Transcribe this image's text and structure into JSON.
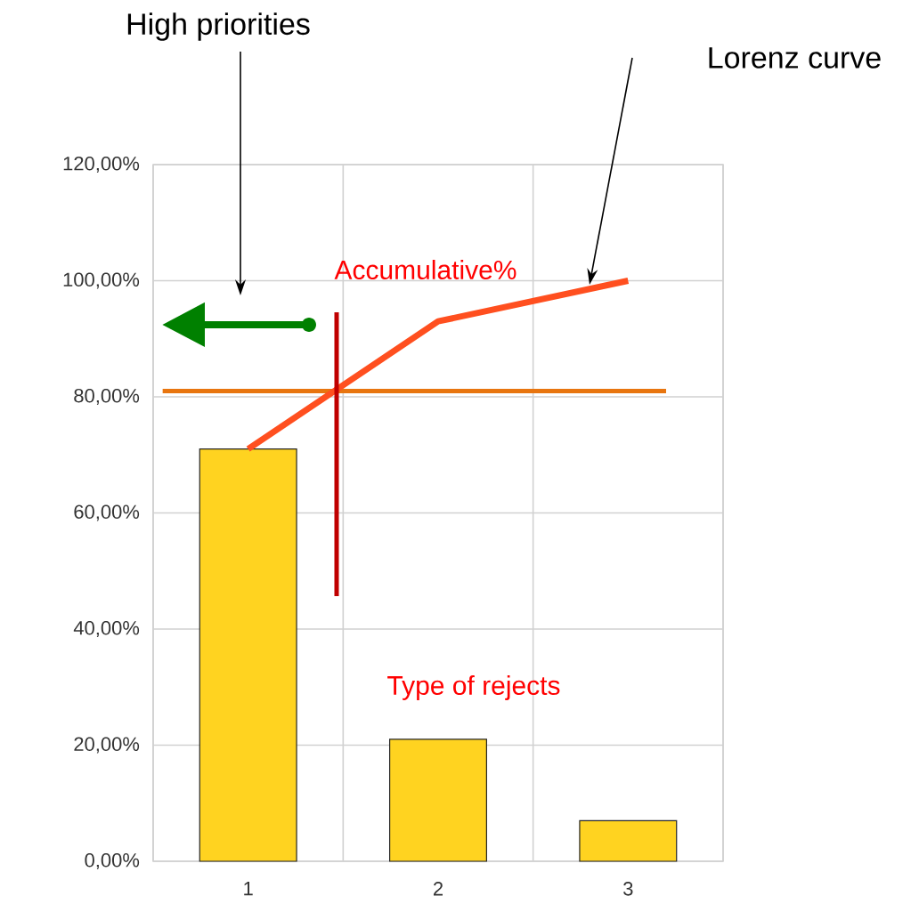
{
  "chart_data": {
    "type": "bar",
    "categories": [
      "1",
      "2",
      "3"
    ],
    "series": [
      {
        "color": "#ffd320",
        "values": [
          71,
          21,
          7
        ]
      },
      {
        "type": "line",
        "color": "#ff4f1f",
        "values": [
          71,
          93,
          100
        ]
      }
    ],
    "ylim": [
      0,
      120
    ],
    "yticks": [
      {
        "value": 0,
        "label": "0,00%"
      },
      {
        "value": 20,
        "label": "20,00%"
      },
      {
        "value": 40,
        "label": "40,00%"
      },
      {
        "value": 60,
        "label": "60,00%"
      },
      {
        "value": 80,
        "label": "80,00%"
      },
      {
        "value": 100,
        "label": "100,00%"
      },
      {
        "value": 120,
        "label": "120,00%"
      }
    ],
    "grid": true,
    "ref_lines": [
      {
        "axis": "y",
        "value": 81,
        "color": "#e8750f"
      }
    ],
    "annotations": [
      "High priorities",
      "Lorenz curve",
      "Accumulative%",
      "Type of rejects"
    ]
  }
}
